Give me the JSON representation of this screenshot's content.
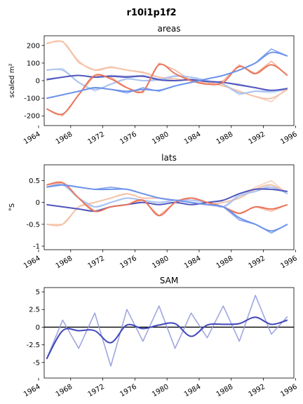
{
  "figure": {
    "suptitle": "r10i1p1f2"
  },
  "chart_data": [
    {
      "type": "line",
      "title": "areas",
      "xlabel": "",
      "ylabel": "scaled m²",
      "xlim": [
        1964.7,
        1995.8
      ],
      "ylim": [
        -255,
        255
      ],
      "xticks": [
        1964,
        1968,
        1972,
        1976,
        1980,
        1984,
        1988,
        1992,
        1996
      ],
      "yticks": [
        -200,
        -100,
        0,
        100,
        200
      ],
      "zero_line": false,
      "series": [
        {
          "color": "#c5d8f5",
          "smooth": false,
          "x": [
            1965,
            1967,
            1969,
            1971,
            1973,
            1975,
            1977,
            1979,
            1981,
            1983,
            1985,
            1987,
            1989,
            1991,
            1993,
            1995
          ],
          "y": [
            60,
            70,
            -10,
            -60,
            -20,
            10,
            0,
            10,
            30,
            20,
            0,
            -20,
            -80,
            -60,
            -70,
            -50
          ]
        },
        {
          "color": "#f5c9b0",
          "smooth": false,
          "x": [
            1965,
            1967,
            1969,
            1971,
            1973,
            1975,
            1977,
            1979,
            1981,
            1983,
            1985,
            1987,
            1989,
            1991,
            1993,
            1995
          ],
          "y": [
            215,
            225,
            100,
            60,
            80,
            60,
            50,
            20,
            10,
            0,
            -10,
            -30,
            -60,
            -90,
            -120,
            -40
          ]
        },
        {
          "color": "#9aa3dc",
          "smooth": false,
          "x": [
            1965,
            1967,
            1969,
            1971,
            1973,
            1975,
            1977,
            1979,
            1981,
            1983,
            1985,
            1987,
            1989,
            1991,
            1993,
            1995
          ],
          "y": [
            10,
            20,
            30,
            20,
            30,
            25,
            30,
            10,
            0,
            10,
            0,
            -10,
            -20,
            -40,
            -60,
            -45
          ]
        },
        {
          "color": "#f4a58a",
          "smooth": false,
          "x": [
            1965,
            1967,
            1969,
            1971,
            1973,
            1975,
            1977,
            1979,
            1981,
            1983,
            1985,
            1987,
            1989,
            1991,
            1993,
            1995
          ],
          "y": [
            -160,
            -200,
            -80,
            30,
            20,
            -40,
            -70,
            100,
            60,
            0,
            -20,
            0,
            90,
            40,
            110,
            30
          ]
        },
        {
          "color": "#6e93ec",
          "smooth": false,
          "x": [
            1965,
            1967,
            1969,
            1971,
            1973,
            1975,
            1977,
            1979,
            1981,
            1983,
            1985,
            1987,
            1989,
            1991,
            1993,
            1995
          ],
          "y": [
            -100,
            -80,
            -60,
            -40,
            -50,
            -70,
            -40,
            -60,
            -30,
            -10,
            10,
            30,
            60,
            100,
            180,
            140
          ]
        },
        {
          "color": "#f5c3a8",
          "smooth": true,
          "x": [
            1965,
            1967,
            1969,
            1971,
            1973,
            1975,
            1977,
            1979,
            1981,
            1983,
            1985,
            1987,
            1989,
            1991,
            1993,
            1995
          ],
          "y": [
            210,
            220,
            110,
            60,
            75,
            60,
            45,
            20,
            10,
            0,
            -10,
            -30,
            -60,
            -90,
            -100,
            -50
          ]
        },
        {
          "color": "#a9c2f1",
          "smooth": true,
          "x": [
            1965,
            1967,
            1969,
            1971,
            1973,
            1975,
            1977,
            1979,
            1981,
            1983,
            1985,
            1987,
            1989,
            1991,
            1993,
            1995
          ],
          "y": [
            60,
            60,
            -10,
            -50,
            -20,
            10,
            0,
            5,
            25,
            20,
            0,
            -20,
            -70,
            -60,
            -60,
            -45
          ]
        },
        {
          "color": "#5157bd",
          "smooth": true,
          "x": [
            1965,
            1967,
            1969,
            1971,
            1973,
            1975,
            1977,
            1979,
            1981,
            1983,
            1985,
            1987,
            1989,
            1991,
            1993,
            1995
          ],
          "y": [
            5,
            20,
            30,
            20,
            25,
            20,
            25,
            5,
            0,
            5,
            -5,
            -10,
            -25,
            -40,
            -55,
            -45
          ]
        },
        {
          "color": "#e9765c",
          "smooth": true,
          "x": [
            1965,
            1967,
            1969,
            1971,
            1973,
            1975,
            1977,
            1979,
            1981,
            1983,
            1985,
            1987,
            1989,
            1991,
            1993,
            1995
          ],
          "y": [
            -160,
            -190,
            -80,
            30,
            10,
            -40,
            -60,
            90,
            40,
            0,
            -20,
            -10,
            80,
            40,
            90,
            30
          ]
        },
        {
          "color": "#6e93ec",
          "smooth": true,
          "x": [
            1965,
            1967,
            1969,
            1971,
            1973,
            1975,
            1977,
            1979,
            1981,
            1983,
            1985,
            1987,
            1989,
            1991,
            1993,
            1995
          ],
          "y": [
            -100,
            -80,
            -60,
            -40,
            -50,
            -60,
            -50,
            -55,
            -30,
            -10,
            10,
            30,
            60,
            100,
            160,
            140
          ]
        }
      ]
    },
    {
      "type": "line",
      "title": "lats",
      "xlabel": "",
      "ylabel": "°S",
      "xlim": [
        1964.7,
        1995.8
      ],
      "ylim": [
        -1.08,
        0.86
      ],
      "xticks": [
        1964,
        1968,
        1972,
        1976,
        1980,
        1984,
        1988,
        1992,
        1996
      ],
      "yticks": [
        -1.0,
        -0.5,
        0.0,
        0.5
      ],
      "zero_line": false,
      "series": [
        {
          "color": "#c5d8f5",
          "smooth": false,
          "x": [
            1965,
            1967,
            1969,
            1971,
            1973,
            1975,
            1977,
            1979,
            1981,
            1983,
            1985,
            1987,
            1989,
            1991,
            1993,
            1995
          ],
          "y": [
            0.35,
            0.45,
            0.1,
            -0.1,
            0.0,
            0.1,
            0.05,
            0.0,
            0.05,
            0.05,
            0.0,
            -0.1,
            0.2,
            0.3,
            0.4,
            0.2
          ]
        },
        {
          "color": "#f5c9b0",
          "smooth": false,
          "x": [
            1965,
            1967,
            1969,
            1971,
            1973,
            1975,
            1977,
            1979,
            1981,
            1983,
            1985,
            1987,
            1989,
            1991,
            1993,
            1995
          ],
          "y": [
            -0.5,
            -0.5,
            -0.1,
            0.0,
            0.1,
            0.2,
            0.1,
            0.1,
            0.05,
            0.0,
            -0.05,
            0.0,
            0.1,
            0.35,
            0.5,
            0.2
          ]
        },
        {
          "color": "#9aa3dc",
          "smooth": false,
          "x": [
            1965,
            1967,
            1969,
            1971,
            1973,
            1975,
            1977,
            1979,
            1981,
            1983,
            1985,
            1987,
            1989,
            1991,
            1993,
            1995
          ],
          "y": [
            -0.05,
            -0.1,
            -0.15,
            -0.2,
            -0.1,
            -0.05,
            0.0,
            -0.05,
            0.0,
            -0.05,
            0.0,
            0.05,
            0.2,
            0.3,
            0.3,
            0.25
          ]
        },
        {
          "color": "#f4a58a",
          "smooth": false,
          "x": [
            1965,
            1967,
            1969,
            1971,
            1973,
            1975,
            1977,
            1979,
            1981,
            1983,
            1985,
            1987,
            1989,
            1991,
            1993,
            1995
          ],
          "y": [
            0.4,
            0.45,
            0.1,
            -0.2,
            -0.1,
            -0.05,
            0.05,
            -0.3,
            0.0,
            0.1,
            0.0,
            -0.1,
            -0.25,
            -0.1,
            -0.2,
            -0.05
          ]
        },
        {
          "color": "#6e93ec",
          "smooth": false,
          "x": [
            1965,
            1967,
            1969,
            1971,
            1973,
            1975,
            1977,
            1979,
            1981,
            1983,
            1985,
            1987,
            1989,
            1991,
            1993,
            1995
          ],
          "y": [
            0.35,
            0.4,
            0.35,
            0.3,
            0.35,
            0.3,
            0.2,
            0.1,
            0.05,
            0.0,
            -0.05,
            -0.1,
            -0.4,
            -0.5,
            -0.7,
            -0.5
          ]
        },
        {
          "color": "#f5c3a8",
          "smooth": true,
          "x": [
            1965,
            1967,
            1969,
            1971,
            1973,
            1975,
            1977,
            1979,
            1981,
            1983,
            1985,
            1987,
            1989,
            1991,
            1993,
            1995
          ],
          "y": [
            -0.5,
            -0.5,
            -0.1,
            0.0,
            0.1,
            0.2,
            0.1,
            0.1,
            0.05,
            0.0,
            -0.05,
            0.0,
            0.1,
            0.3,
            0.4,
            0.2
          ]
        },
        {
          "color": "#a9c2f1",
          "smooth": true,
          "x": [
            1965,
            1967,
            1969,
            1971,
            1973,
            1975,
            1977,
            1979,
            1981,
            1983,
            1985,
            1987,
            1989,
            1991,
            1993,
            1995
          ],
          "y": [
            0.35,
            0.4,
            0.1,
            -0.1,
            0.0,
            0.1,
            0.05,
            0.0,
            0.05,
            0.05,
            0.0,
            -0.1,
            0.15,
            0.25,
            0.35,
            0.2
          ]
        },
        {
          "color": "#5157bd",
          "smooth": true,
          "x": [
            1965,
            1967,
            1969,
            1971,
            1973,
            1975,
            1977,
            1979,
            1981,
            1983,
            1985,
            1987,
            1989,
            1991,
            1993,
            1995
          ],
          "y": [
            -0.05,
            -0.1,
            -0.15,
            -0.2,
            -0.1,
            -0.05,
            0.0,
            -0.05,
            0.0,
            -0.05,
            0.0,
            0.05,
            0.2,
            0.3,
            0.3,
            0.25
          ]
        },
        {
          "color": "#e9765c",
          "smooth": true,
          "x": [
            1965,
            1967,
            1969,
            1971,
            1973,
            1975,
            1977,
            1979,
            1981,
            1983,
            1985,
            1987,
            1989,
            1991,
            1993,
            1995
          ],
          "y": [
            0.4,
            0.45,
            0.1,
            -0.2,
            -0.1,
            -0.05,
            0.05,
            -0.3,
            0.0,
            0.1,
            0.0,
            -0.1,
            -0.25,
            -0.1,
            -0.15,
            -0.05
          ]
        },
        {
          "color": "#6e93ec",
          "smooth": true,
          "x": [
            1965,
            1967,
            1969,
            1971,
            1973,
            1975,
            1977,
            1979,
            1981,
            1983,
            1985,
            1987,
            1989,
            1991,
            1993,
            1995
          ],
          "y": [
            0.35,
            0.4,
            0.35,
            0.3,
            0.3,
            0.3,
            0.2,
            0.1,
            0.05,
            0.0,
            -0.05,
            -0.1,
            -0.35,
            -0.5,
            -0.65,
            -0.5
          ]
        }
      ]
    },
    {
      "type": "line",
      "title": "SAM",
      "xlabel": "",
      "ylabel": "",
      "xlim": [
        1964.7,
        1995.8
      ],
      "ylim": [
        -7.2,
        5.6
      ],
      "xticks": [
        1964,
        1968,
        1972,
        1976,
        1980,
        1984,
        1988,
        1992,
        1996
      ],
      "yticks": [
        -5.0,
        -2.5,
        0.0,
        2.5,
        5.0
      ],
      "zero_line": true,
      "series": [
        {
          "color": "#8f97dc",
          "smooth": false,
          "x": [
            1965,
            1967,
            1969,
            1971,
            1973,
            1975,
            1977,
            1979,
            1981,
            1983,
            1985,
            1987,
            1989,
            1991,
            1993,
            1995
          ],
          "y": [
            -4.5,
            1.0,
            -3.0,
            2.0,
            -5.5,
            2.5,
            -2.0,
            3.0,
            -3.0,
            2.0,
            -1.5,
            3.0,
            -2.0,
            4.5,
            -1.0,
            1.5
          ]
        },
        {
          "color": "#3f48b8",
          "smooth": true,
          "x": [
            1965,
            1967,
            1969,
            1971,
            1973,
            1975,
            1977,
            1979,
            1981,
            1983,
            1985,
            1987,
            1989,
            1991,
            1993,
            1995
          ],
          "y": [
            -4.5,
            -0.5,
            -0.5,
            -0.5,
            -2.2,
            0.3,
            -0.2,
            0.3,
            0.5,
            -1.3,
            0.3,
            0.4,
            0.5,
            1.4,
            0.4,
            1.0
          ]
        }
      ]
    }
  ]
}
